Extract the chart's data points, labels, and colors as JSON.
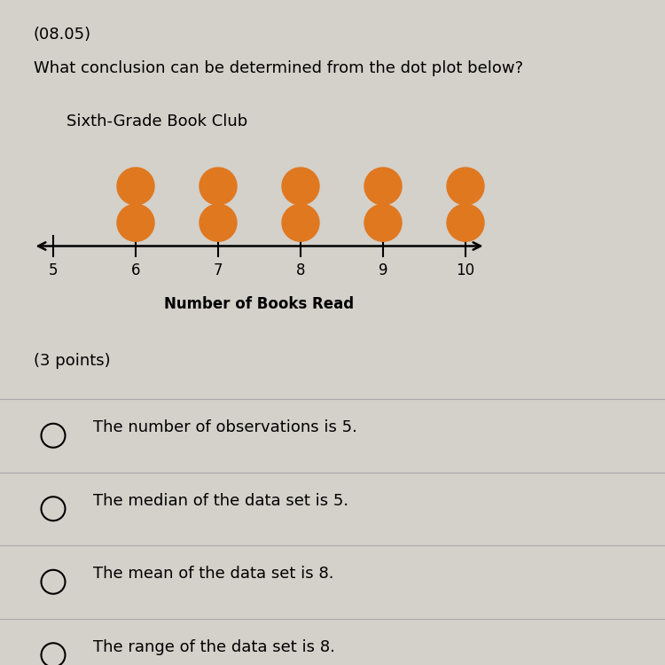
{
  "title": "(08.05)",
  "question": "What conclusion can be determined from the dot plot below?",
  "dot_plot_title": "Sixth-Grade Book Club",
  "xlabel": "Number of Books Read",
  "dot_data": {
    "6": 2,
    "7": 2,
    "8": 2,
    "9": 2,
    "10": 2
  },
  "x_min": 5,
  "x_max": 10,
  "dot_color": "#E07820",
  "background_color": "#d4d0ca",
  "options": [
    "The number of observations is 5.",
    "The median of the data set is 5.",
    "The mean of the data set is 8.",
    "The range of the data set is 8."
  ],
  "points_label": "(3 points)"
}
